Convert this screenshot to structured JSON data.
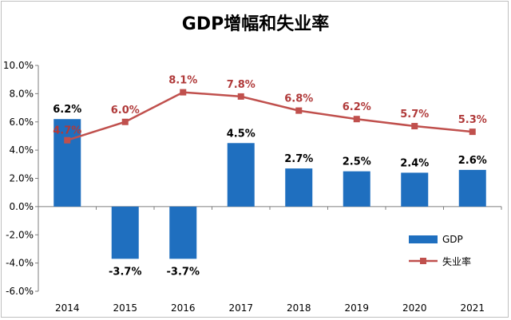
{
  "chart_data": {
    "type": "bar",
    "title": "GDP增幅和失业率",
    "categories": [
      "2014",
      "2015",
      "2016",
      "2017",
      "2018",
      "2019",
      "2020",
      "2021"
    ],
    "ylim": [
      -6,
      10
    ],
    "yticks": [
      "10.0%",
      "8.0%",
      "6.0%",
      "4.0%",
      "2.0%",
      "0.0%",
      "-2.0%",
      "-4.0%",
      "-6.0%"
    ],
    "grid": false,
    "legend_position": "right",
    "series": [
      {
        "name": "GDP",
        "kind": "bar",
        "color": "#1f6fbf",
        "values": [
          6.2,
          -3.7,
          -3.7,
          4.5,
          2.7,
          2.5,
          2.4,
          2.6
        ],
        "labels": [
          "6.2%",
          "-3.7%",
          "-3.7%",
          "4.5%",
          "2.7%",
          "2.5%",
          "2.4%",
          "2.6%"
        ]
      },
      {
        "name": "失业率",
        "kind": "line",
        "color": "#c0504d",
        "values": [
          4.7,
          6.0,
          8.1,
          7.8,
          6.8,
          6.2,
          5.7,
          5.3
        ],
        "labels": [
          "4.7%",
          "6.0%",
          "8.1%",
          "7.8%",
          "6.8%",
          "6.2%",
          "5.7%",
          "5.3%"
        ]
      }
    ]
  }
}
